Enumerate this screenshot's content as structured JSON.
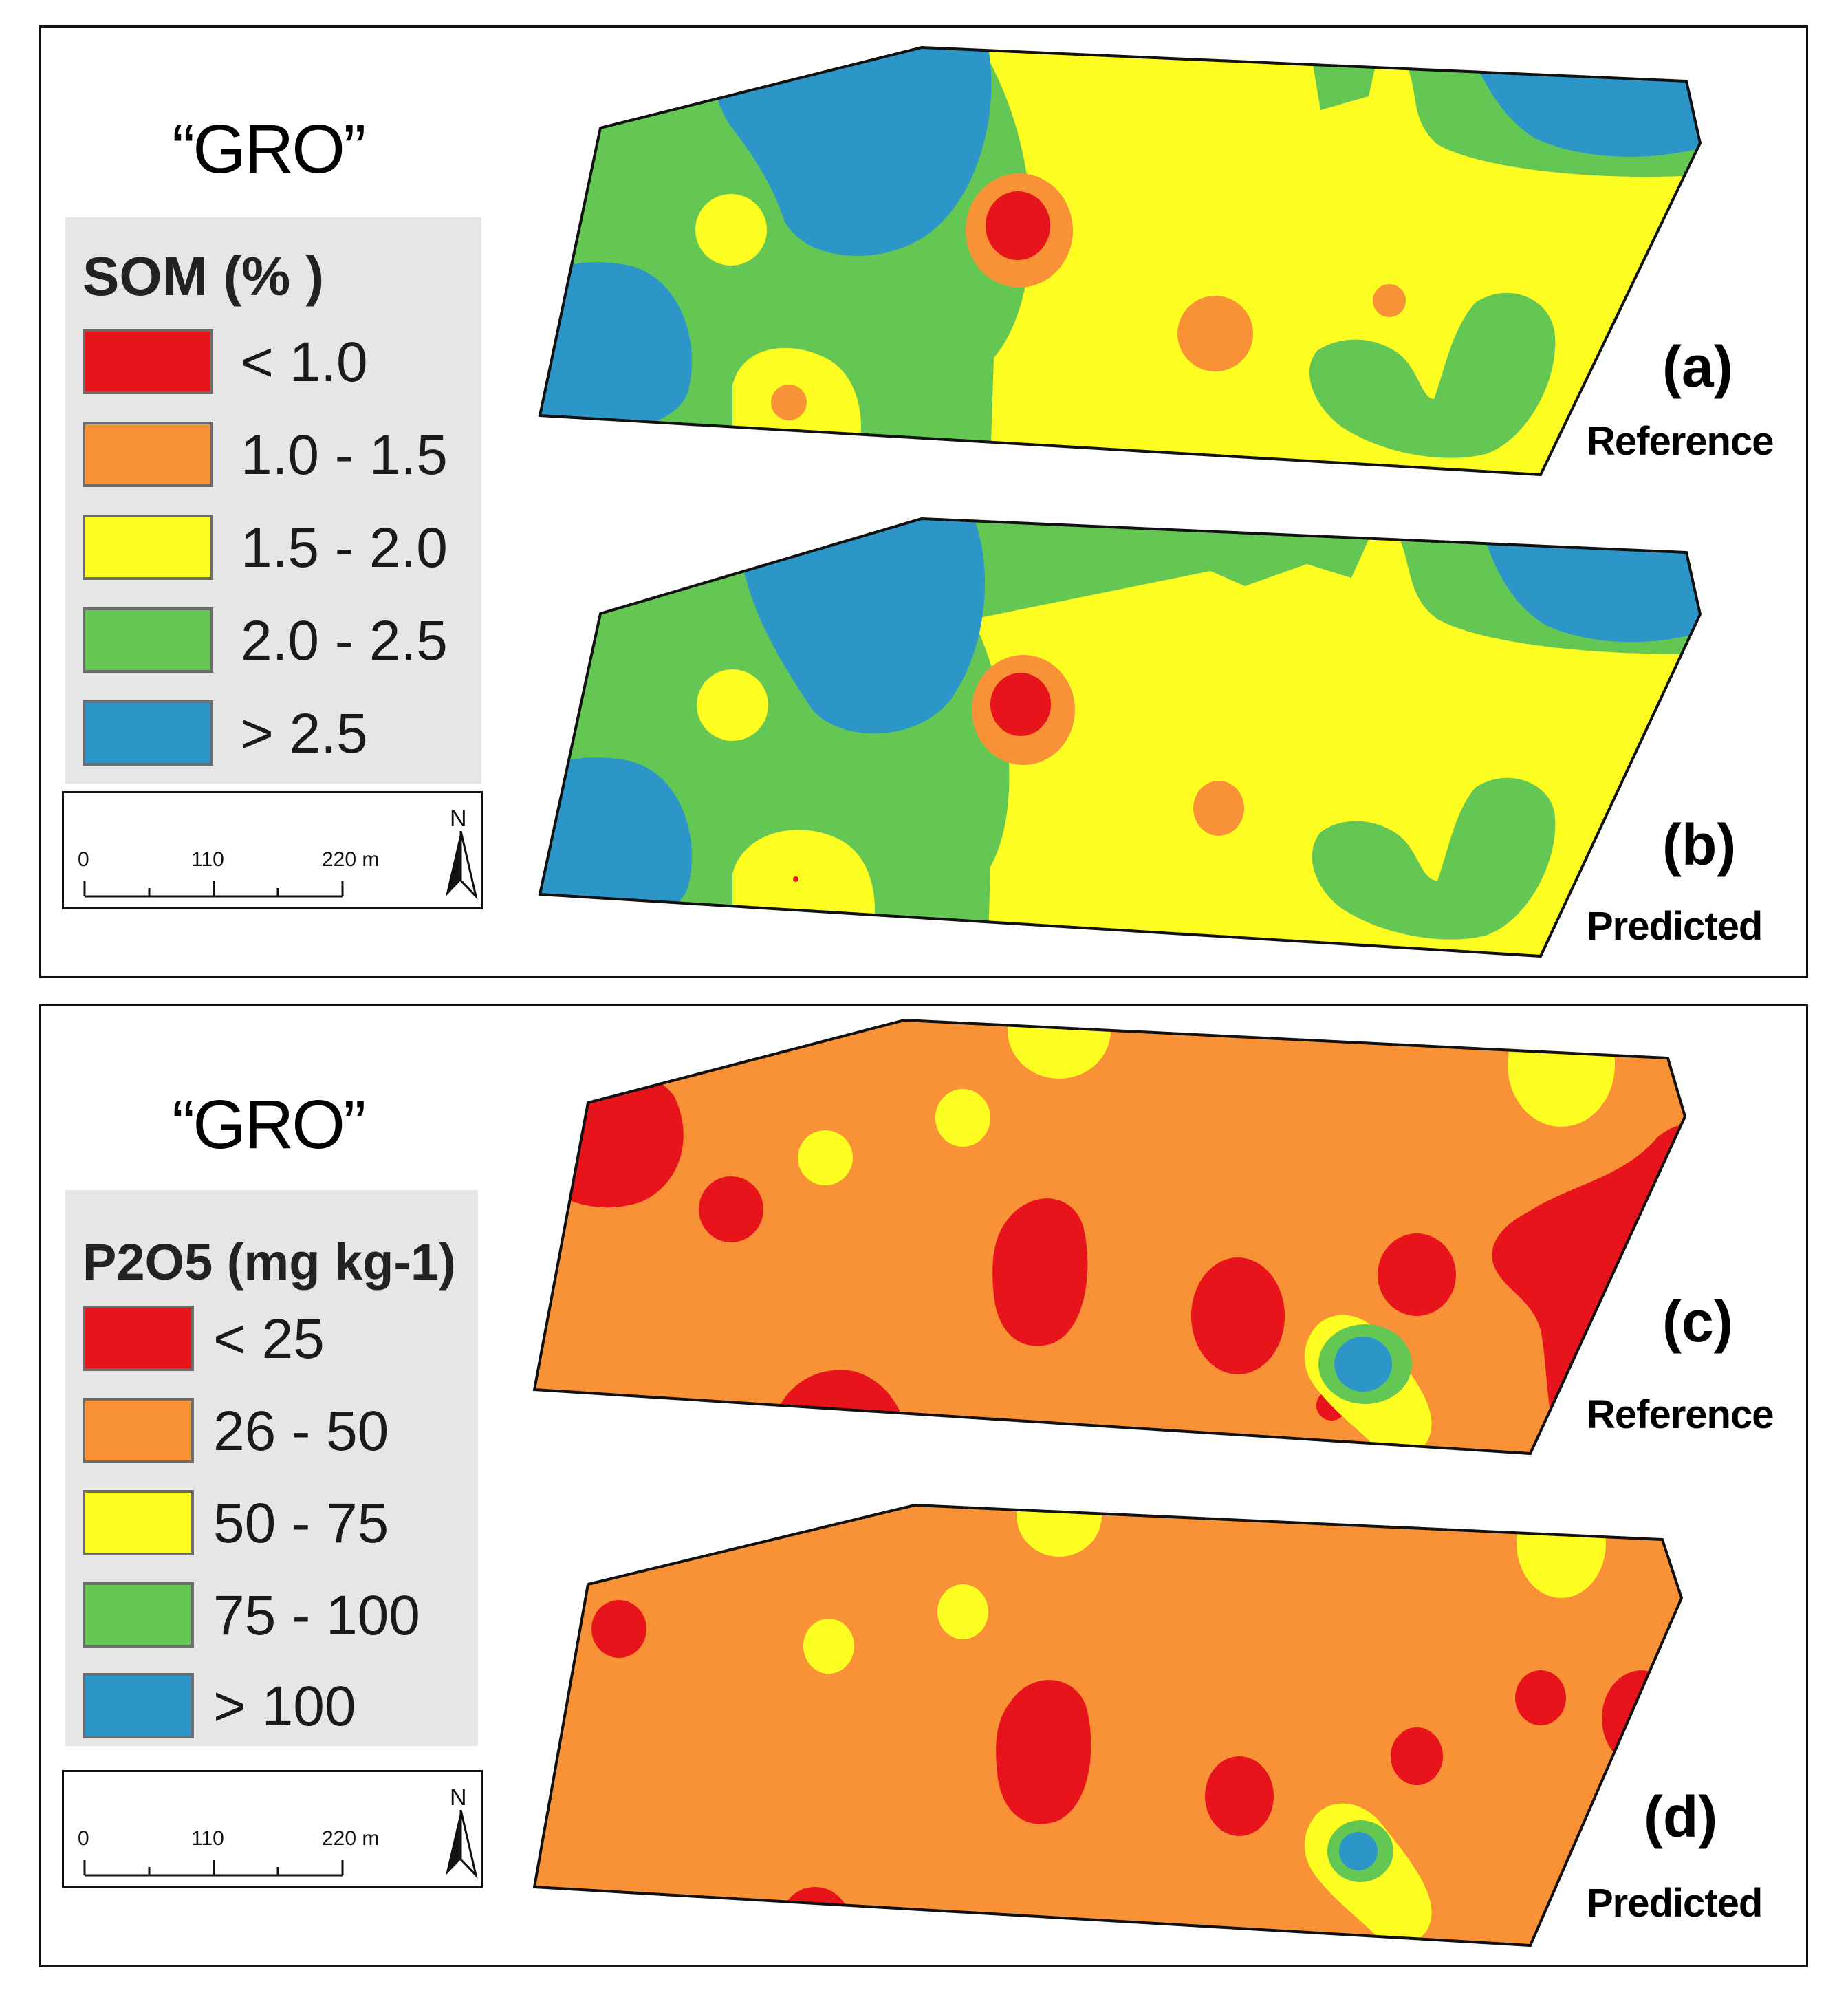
{
  "figure": {
    "top_panel": {
      "site_title": "“GRO”",
      "legend_title": "SOM (% )",
      "legend": [
        {
          "label": "< 1.0",
          "color": "#e8141c"
        },
        {
          "label": "1.0 - 1.5",
          "color": "#f99136"
        },
        {
          "label": "1.5 - 2.0",
          "color": "#fefe22"
        },
        {
          "label": "2.0 - 2.5",
          "color": "#65c753"
        },
        {
          "label": "> 2.5",
          "color": "#2d96c9"
        }
      ],
      "scale": {
        "ticks": [
          "0",
          "110",
          "220 m"
        ],
        "north": "N"
      },
      "maps": [
        {
          "letter": "(a)",
          "caption": "Reference"
        },
        {
          "letter": "(b)",
          "caption": "Predicted"
        }
      ]
    },
    "bottom_panel": {
      "site_title": "“GRO”",
      "legend_title": "P2O5 (mg kg-1)",
      "legend": [
        {
          "label": "< 25",
          "color": "#e8141c"
        },
        {
          "label": "26 - 50",
          "color": "#f99136"
        },
        {
          "label": "50 - 75",
          "color": "#fefe22"
        },
        {
          "label": "75 - 100",
          "color": "#65c753"
        },
        {
          "label": "> 100",
          "color": "#2d96c9"
        }
      ],
      "scale": {
        "ticks": [
          "0",
          "110",
          "220 m"
        ],
        "north": "N"
      },
      "maps": [
        {
          "letter": "(c)",
          "caption": "Reference"
        },
        {
          "letter": "(d)",
          "caption": "Predicted"
        }
      ]
    }
  }
}
